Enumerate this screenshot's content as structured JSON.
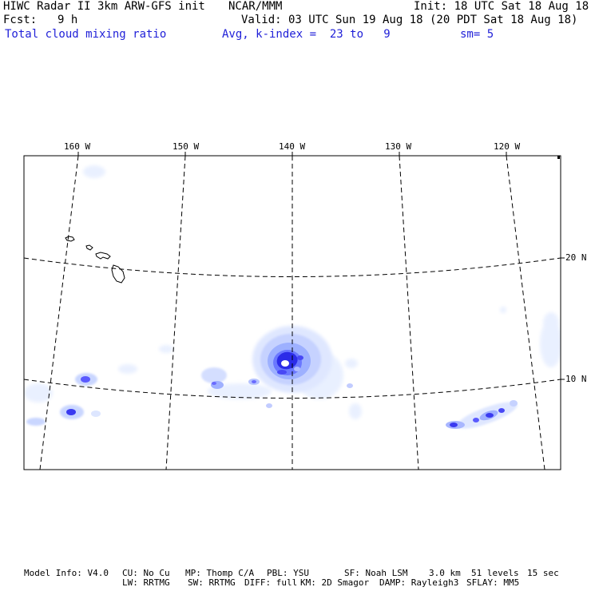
{
  "header": {
    "model": "HIWC Radar II 3km ARW-GFS init",
    "org": "NCAR/MMM",
    "init": "Init: 18 UTC Sat 18 Aug 18",
    "fcst_label": "Fcst:",
    "fcst_value": "9 h",
    "valid": "Valid: 03 UTC Sun 19 Aug 18 (20 PDT Sat 18 Aug 18)",
    "field": "Total cloud mixing ratio",
    "avg": "Avg, k-index =  23 to   9",
    "smooth": "sm= 5"
  },
  "map": {
    "lon_labels": [
      "160 W",
      "150 W",
      "140 W",
      "130 W",
      "120 W"
    ],
    "lat_labels": [
      "20 N",
      "10 N"
    ],
    "colors": {
      "frame": "#000000",
      "grid": "#000000",
      "cloud_light": "#d9e6ff",
      "cloud_mid": "#aab9ff",
      "cloud_dark": "#4b4bff",
      "cloud_core": "#1a1ad9"
    },
    "features": [
      "hawaii-islands",
      "hurricane-cloud-field"
    ]
  },
  "footer": {
    "line1": [
      "Model Info: V4.0",
      "CU: No Cu",
      "MP: Thomp C/A",
      "PBL: YSU",
      "SF: Noah LSM",
      "3.0 km",
      "51 levels",
      "15 sec"
    ],
    "line2": [
      "LW: RRTMG",
      "SW: RRTMG",
      "DIFF: full",
      "KM: 2D Smagor",
      "DAMP: Rayleigh3",
      "SFLAY: MM5"
    ]
  }
}
